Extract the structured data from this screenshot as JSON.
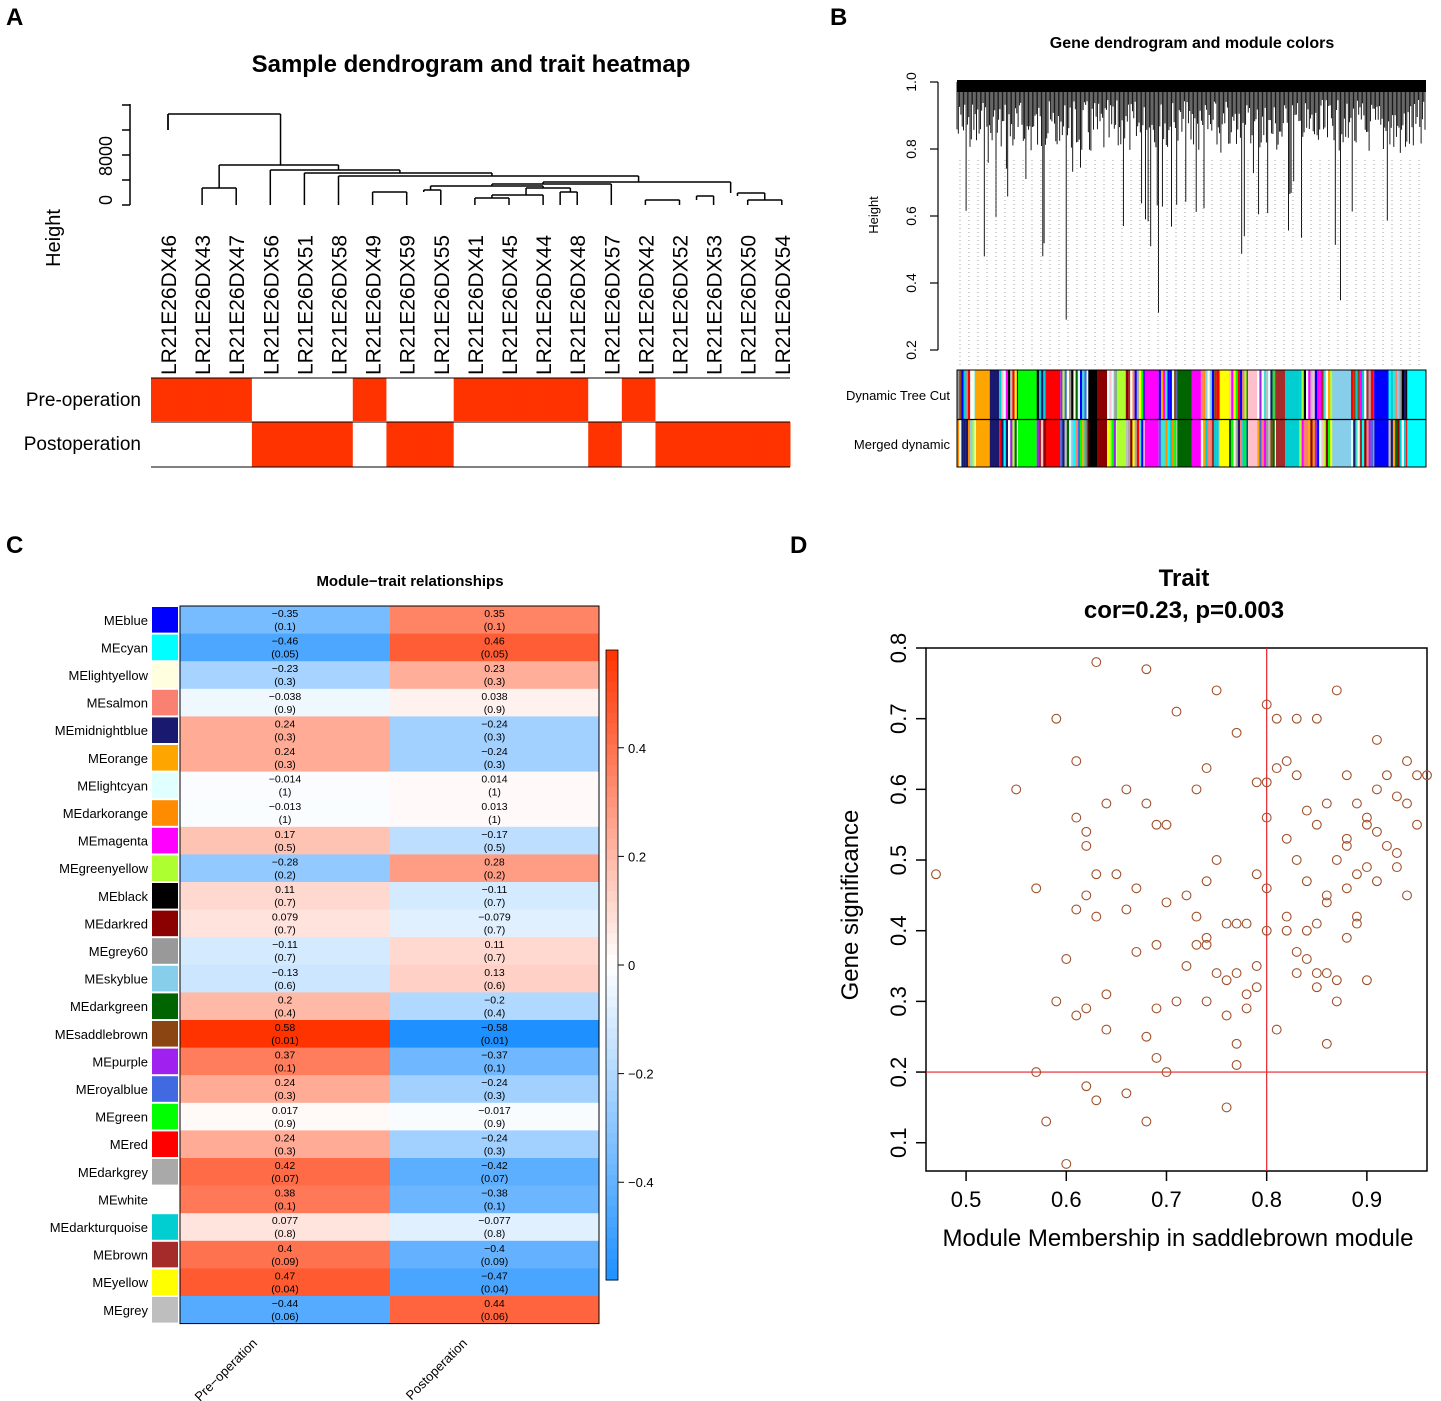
{
  "panels": {
    "A": {
      "letter": "A",
      "title": "Sample dendrogram and trait heatmap",
      "ylabel": "Height",
      "yticks": [
        "0",
        "8000"
      ],
      "samples": [
        "LR21E26DX46",
        "LR21E26DX43",
        "LR21E26DX47",
        "LR21E26DX56",
        "LR21E26DX51",
        "LR21E26DX58",
        "LR21E26DX49",
        "LR21E26DX59",
        "LR21E26DX55",
        "LR21E26DX41",
        "LR21E26DX45",
        "LR21E26DX44",
        "LR21E26DX48",
        "LR21E26DX57",
        "LR21E26DX42",
        "LR21E26DX52",
        "LR21E26DX53",
        "LR21E26DX50",
        "LR21E26DX54"
      ],
      "traits": [
        {
          "name": "Pre-operation",
          "values": [
            1,
            1,
            1,
            0,
            0,
            0,
            1,
            0,
            0,
            1,
            1,
            1,
            1,
            0,
            1,
            0,
            0,
            0,
            0
          ]
        },
        {
          "name": "Postoperation",
          "values": [
            0,
            0,
            0,
            1,
            1,
            1,
            0,
            1,
            1,
            0,
            0,
            0,
            0,
            1,
            0,
            1,
            1,
            1,
            1
          ]
        }
      ],
      "colors": {
        "on": "#ff3300",
        "off": "#ffffff"
      }
    },
    "B": {
      "letter": "B",
      "title": "Gene dendrogram and module colors",
      "ylabel": "Height",
      "yticks": [
        "0.2",
        "0.4",
        "0.6",
        "0.8",
        "1.0"
      ],
      "row_labels": [
        "Dynamic Tree Cut",
        "Merged dynamic"
      ]
    },
    "C": {
      "letter": "C",
      "title": "Module−trait relationships",
      "columns": [
        "Pre−operation",
        "Postoperation"
      ],
      "legend_ticks": [
        "0.4",
        "0.2",
        "0",
        "−0.2",
        "−0.4"
      ],
      "modules": [
        {
          "name": "MEblue",
          "color": "#0000ff",
          "pre": "−0.35",
          "pre_p": "(0.1)",
          "post": "0.35",
          "post_p": "(0.1)"
        },
        {
          "name": "MEcyan",
          "color": "#00ffff",
          "pre": "−0.46",
          "pre_p": "(0.05)",
          "post": "0.46",
          "post_p": "(0.05)"
        },
        {
          "name": "MElightyellow",
          "color": "#ffffe0",
          "pre": "−0.23",
          "pre_p": "(0.3)",
          "post": "0.23",
          "post_p": "(0.3)"
        },
        {
          "name": "MEsalmon",
          "color": "#fa8072",
          "pre": "−0.038",
          "pre_p": "(0.9)",
          "post": "0.038",
          "post_p": "(0.9)"
        },
        {
          "name": "MEmidnightblue",
          "color": "#191970",
          "pre": "0.24",
          "pre_p": "(0.3)",
          "post": "−0.24",
          "post_p": "(0.3)"
        },
        {
          "name": "MEorange",
          "color": "#ffa500",
          "pre": "0.24",
          "pre_p": "(0.3)",
          "post": "−0.24",
          "post_p": "(0.3)"
        },
        {
          "name": "MElightcyan",
          "color": "#e0ffff",
          "pre": "−0.014",
          "pre_p": "(1)",
          "post": "0.014",
          "post_p": "(1)"
        },
        {
          "name": "MEdarkorange",
          "color": "#ff8c00",
          "pre": "−0.013",
          "pre_p": "(1)",
          "post": "0.013",
          "post_p": "(1)"
        },
        {
          "name": "MEmagenta",
          "color": "#ff00ff",
          "pre": "0.17",
          "pre_p": "(0.5)",
          "post": "−0.17",
          "post_p": "(0.5)"
        },
        {
          "name": "MEgreenyellow",
          "color": "#adff2f",
          "pre": "−0.28",
          "pre_p": "(0.2)",
          "post": "0.28",
          "post_p": "(0.2)"
        },
        {
          "name": "MEblack",
          "color": "#000000",
          "pre": "0.11",
          "pre_p": "(0.7)",
          "post": "−0.11",
          "post_p": "(0.7)"
        },
        {
          "name": "MEdarkred",
          "color": "#8b0000",
          "pre": "0.079",
          "pre_p": "(0.7)",
          "post": "−0.079",
          "post_p": "(0.7)"
        },
        {
          "name": "MEgrey60",
          "color": "#999999",
          "pre": "−0.11",
          "pre_p": "(0.7)",
          "post": "0.11",
          "post_p": "(0.7)"
        },
        {
          "name": "MEskyblue",
          "color": "#87ceeb",
          "pre": "−0.13",
          "pre_p": "(0.6)",
          "post": "0.13",
          "post_p": "(0.6)"
        },
        {
          "name": "MEdarkgreen",
          "color": "#006400",
          "pre": "0.2",
          "pre_p": "(0.4)",
          "post": "−0.2",
          "post_p": "(0.4)"
        },
        {
          "name": "MEsaddlebrown",
          "color": "#8b4513",
          "pre": "0.58",
          "pre_p": "(0.01)",
          "post": "−0.58",
          "post_p": "(0.01)"
        },
        {
          "name": "MEpurple",
          "color": "#a020f0",
          "pre": "0.37",
          "pre_p": "(0.1)",
          "post": "−0.37",
          "post_p": "(0.1)"
        },
        {
          "name": "MEroyalblue",
          "color": "#4169e1",
          "pre": "0.24",
          "pre_p": "(0.3)",
          "post": "−0.24",
          "post_p": "(0.3)"
        },
        {
          "name": "MEgreen",
          "color": "#00ff00",
          "pre": "0.017",
          "pre_p": "(0.9)",
          "post": "−0.017",
          "post_p": "(0.9)"
        },
        {
          "name": "MEred",
          "color": "#ff0000",
          "pre": "0.24",
          "pre_p": "(0.3)",
          "post": "−0.24",
          "post_p": "(0.3)"
        },
        {
          "name": "MEdarkgrey",
          "color": "#a9a9a9",
          "pre": "0.42",
          "pre_p": "(0.07)",
          "post": "−0.42",
          "post_p": "(0.07)"
        },
        {
          "name": "MEwhite",
          "color": "#ffffff",
          "pre": "0.38",
          "pre_p": "(0.1)",
          "post": "−0.38",
          "post_p": "(0.1)"
        },
        {
          "name": "MEdarkturquoise",
          "color": "#00ced1",
          "pre": "0.077",
          "pre_p": "(0.8)",
          "post": "−0.077",
          "post_p": "(0.8)"
        },
        {
          "name": "MEbrown",
          "color": "#a52a2a",
          "pre": "0.4",
          "pre_p": "(0.09)",
          "post": "−0.4",
          "post_p": "(0.09)"
        },
        {
          "name": "MEyellow",
          "color": "#ffff00",
          "pre": "0.47",
          "pre_p": "(0.04)",
          "post": "−0.47",
          "post_p": "(0.04)"
        },
        {
          "name": "MEgrey",
          "color": "#bebebe",
          "pre": "−0.44",
          "pre_p": "(0.06)",
          "post": "0.44",
          "post_p": "(0.06)"
        }
      ]
    },
    "D": {
      "letter": "D",
      "title": "Trait",
      "subtitle": "cor=0.23, p=0.003",
      "xlabel": "Module Membership in saddlebrown module",
      "ylabel": "Gene significance",
      "xticks": [
        "0.5",
        "0.6",
        "0.7",
        "0.8",
        "0.9"
      ],
      "yticks": [
        "0.1",
        "0.2",
        "0.3",
        "0.4",
        "0.5",
        "0.6",
        "0.7",
        "0.8"
      ]
    }
  },
  "chart_data": [
    {
      "type": "heatmap",
      "title": "Sample dendrogram and trait heatmap",
      "ylabel": "Height",
      "categories": [
        "LR21E26DX46",
        "LR21E26DX43",
        "LR21E26DX47",
        "LR21E26DX56",
        "LR21E26DX51",
        "LR21E26DX58",
        "LR21E26DX49",
        "LR21E26DX59",
        "LR21E26DX55",
        "LR21E26DX41",
        "LR21E26DX45",
        "LR21E26DX44",
        "LR21E26DX48",
        "LR21E26DX57",
        "LR21E26DX42",
        "LR21E26DX52",
        "LR21E26DX53",
        "LR21E26DX50",
        "LR21E26DX54"
      ],
      "series": [
        {
          "name": "Pre-operation",
          "values": [
            1,
            1,
            1,
            0,
            0,
            0,
            1,
            0,
            0,
            1,
            1,
            1,
            1,
            0,
            1,
            0,
            0,
            0,
            0
          ]
        },
        {
          "name": "Postoperation",
          "values": [
            0,
            0,
            0,
            1,
            1,
            1,
            0,
            1,
            1,
            0,
            0,
            0,
            0,
            1,
            0,
            1,
            1,
            1,
            1
          ]
        }
      ]
    },
    {
      "type": "heatmap",
      "title": "Gene dendrogram and module colors",
      "ylabel": "Height",
      "ylim": [
        0.2,
        1.0
      ],
      "rows": [
        "Dynamic Tree Cut",
        "Merged dynamic"
      ]
    },
    {
      "type": "heatmap",
      "title": "Module-trait relationships",
      "columns": [
        "Pre-operation",
        "Postoperation"
      ],
      "legend_range": [
        -0.58,
        0.58
      ],
      "rows": [
        "MEblue",
        "MEcyan",
        "MElightyellow",
        "MEsalmon",
        "MEmidnightblue",
        "MEorange",
        "MElightcyan",
        "MEdarkorange",
        "MEmagenta",
        "MEgreenyellow",
        "MEblack",
        "MEdarkred",
        "MEgrey60",
        "MEskyblue",
        "MEdarkgreen",
        "MEsaddlebrown",
        "MEpurple",
        "MEroyalblue",
        "MEgreen",
        "MEred",
        "MEdarkgrey",
        "MEwhite",
        "MEdarkturquoise",
        "MEbrown",
        "MEyellow",
        "MEgrey"
      ],
      "pre_operation": [
        -0.35,
        -0.46,
        -0.23,
        -0.038,
        0.24,
        0.24,
        -0.014,
        -0.013,
        0.17,
        -0.28,
        0.11,
        0.079,
        -0.11,
        -0.13,
        0.2,
        0.58,
        0.37,
        0.24,
        0.017,
        0.24,
        0.42,
        0.38,
        0.077,
        0.4,
        0.47,
        -0.44
      ],
      "postoperation": [
        0.35,
        0.46,
        0.23,
        0.038,
        -0.24,
        -0.24,
        0.014,
        0.013,
        -0.17,
        0.28,
        -0.11,
        -0.079,
        0.11,
        0.13,
        -0.2,
        -0.58,
        -0.37,
        -0.24,
        -0.017,
        -0.24,
        -0.42,
        -0.38,
        -0.077,
        -0.4,
        -0.47,
        0.44
      ],
      "p_values": [
        0.1,
        0.05,
        0.3,
        0.9,
        0.3,
        0.3,
        1,
        1,
        0.5,
        0.2,
        0.7,
        0.7,
        0.7,
        0.6,
        0.4,
        0.01,
        0.1,
        0.3,
        0.9,
        0.3,
        0.07,
        0.1,
        0.8,
        0.09,
        0.04,
        0.06
      ]
    },
    {
      "type": "scatter",
      "title": "Trait",
      "subtitle": "cor=0.23, p=0.003",
      "xlabel": "Module Membership in saddlebrown module",
      "ylabel": "Gene significance",
      "xlim": [
        0.46,
        0.96
      ],
      "ylim": [
        0.06,
        0.8
      ],
      "xline": 0.8,
      "yline": 0.2,
      "x": [
        0.47,
        0.55,
        0.57,
        0.59,
        0.59,
        0.6,
        0.61,
        0.61,
        0.61,
        0.62,
        0.62,
        0.62,
        0.62,
        0.63,
        0.63,
        0.63,
        0.64,
        0.64,
        0.65,
        0.66,
        0.67,
        0.66,
        0.67,
        0.68,
        0.68,
        0.68,
        0.69,
        0.69,
        0.69,
        0.7,
        0.71,
        0.71,
        0.72,
        0.73,
        0.73,
        0.73,
        0.74,
        0.74,
        0.74,
        0.75,
        0.75,
        0.76,
        0.76,
        0.76,
        0.77,
        0.77,
        0.77,
        0.78,
        0.78,
        0.79,
        0.79,
        0.79,
        0.8,
        0.8,
        0.8,
        0.8,
        0.81,
        0.81,
        0.81,
        0.82,
        0.82,
        0.82,
        0.83,
        0.83,
        0.83,
        0.83,
        0.84,
        0.84,
        0.84,
        0.85,
        0.85,
        0.85,
        0.85,
        0.86,
        0.86,
        0.86,
        0.87,
        0.87,
        0.87,
        0.88,
        0.88,
        0.88,
        0.89,
        0.89,
        0.89,
        0.9,
        0.9,
        0.9,
        0.91,
        0.91,
        0.91,
        0.92,
        0.92,
        0.93,
        0.93,
        0.94,
        0.94,
        0.95,
        0.95,
        0.96,
        0.68,
        0.62,
        0.57,
        0.61,
        0.75,
        0.79,
        0.7,
        0.66,
        0.74,
        0.84,
        0.87,
        0.86,
        0.88,
        0.63,
        0.69,
        0.77,
        0.78,
        0.76,
        0.82,
        0.85,
        0.88,
        0.9,
        0.93,
        0.58,
        0.6,
        0.64,
        0.7,
        0.72,
        0.74,
        0.77,
        0.8,
        0.83,
        0.86,
        0.89,
        0.91,
        0.94
      ],
      "y": [
        0.48,
        0.6,
        0.46,
        0.7,
        0.3,
        0.36,
        0.64,
        0.56,
        0.28,
        0.54,
        0.52,
        0.29,
        0.45,
        0.78,
        0.42,
        0.16,
        0.58,
        0.26,
        0.48,
        0.6,
        0.37,
        0.17,
        0.46,
        0.77,
        0.13,
        0.58,
        0.55,
        0.22,
        0.29,
        0.2,
        0.71,
        0.3,
        0.35,
        0.6,
        0.42,
        0.38,
        0.63,
        0.47,
        0.3,
        0.74,
        0.5,
        0.41,
        0.28,
        0.15,
        0.68,
        0.24,
        0.21,
        0.29,
        0.41,
        0.61,
        0.48,
        0.32,
        0.72,
        0.56,
        0.46,
        0.4,
        0.7,
        0.63,
        0.26,
        0.64,
        0.53,
        0.42,
        0.7,
        0.62,
        0.5,
        0.37,
        0.57,
        0.47,
        0.4,
        0.7,
        0.55,
        0.41,
        0.32,
        0.58,
        0.44,
        0.24,
        0.74,
        0.5,
        0.3,
        0.62,
        0.46,
        0.39,
        0.58,
        0.48,
        0.42,
        0.56,
        0.49,
        0.33,
        0.67,
        0.6,
        0.47,
        0.62,
        0.52,
        0.59,
        0.49,
        0.64,
        0.58,
        0.62,
        0.55,
        0.62,
        0.25,
        0.18,
        0.2,
        0.43,
        0.34,
        0.35,
        0.44,
        0.43,
        0.39,
        0.36,
        0.33,
        0.45,
        0.53,
        0.48,
        0.38,
        0.34,
        0.31,
        0.33,
        0.4,
        0.34,
        0.52,
        0.55,
        0.51,
        0.13,
        0.07,
        0.31,
        0.55,
        0.45,
        0.38,
        0.41,
        0.61,
        0.34,
        0.34,
        0.41,
        0.54,
        0.45
      ]
    }
  ]
}
